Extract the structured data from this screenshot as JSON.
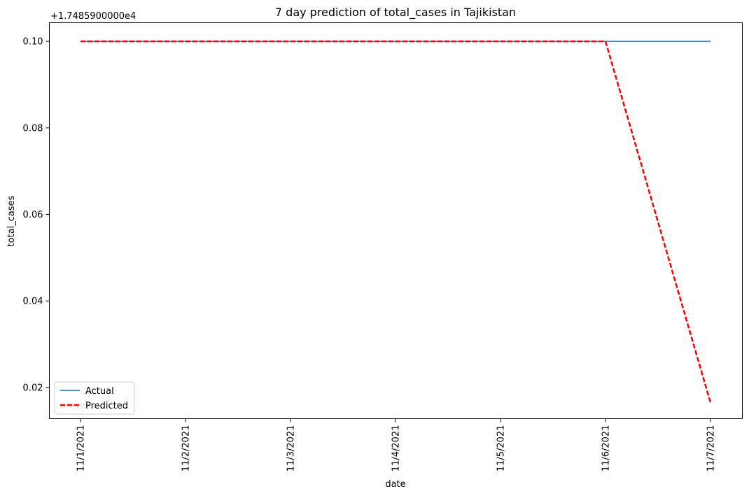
{
  "chart_data": {
    "type": "line",
    "title": "7 day prediction of total_cases in Tajikistan",
    "xlabel": "date",
    "ylabel": "total_cases",
    "offset_text": "+1.7485900000e4",
    "categories": [
      "11/1/2021",
      "11/2/2021",
      "11/3/2021",
      "11/4/2021",
      "11/5/2021",
      "11/6/2021",
      "11/7/2021"
    ],
    "y_ticks": [
      "0.02",
      "0.04",
      "0.06",
      "0.08",
      "0.10"
    ],
    "ylim": [
      0.0128,
      0.1043
    ],
    "grid": false,
    "legend_placement": "lower-left",
    "series": [
      {
        "name": "Actual",
        "values": [
          0.1,
          0.1,
          0.1,
          0.1,
          0.1,
          0.1,
          0.1
        ],
        "color": "#1f77b4",
        "style": "solid"
      },
      {
        "name": "Predicted",
        "values": [
          0.1,
          0.1,
          0.1,
          0.1,
          0.1,
          0.1,
          0.0165
        ],
        "color": "#ff0000",
        "style": "dashed"
      }
    ]
  }
}
